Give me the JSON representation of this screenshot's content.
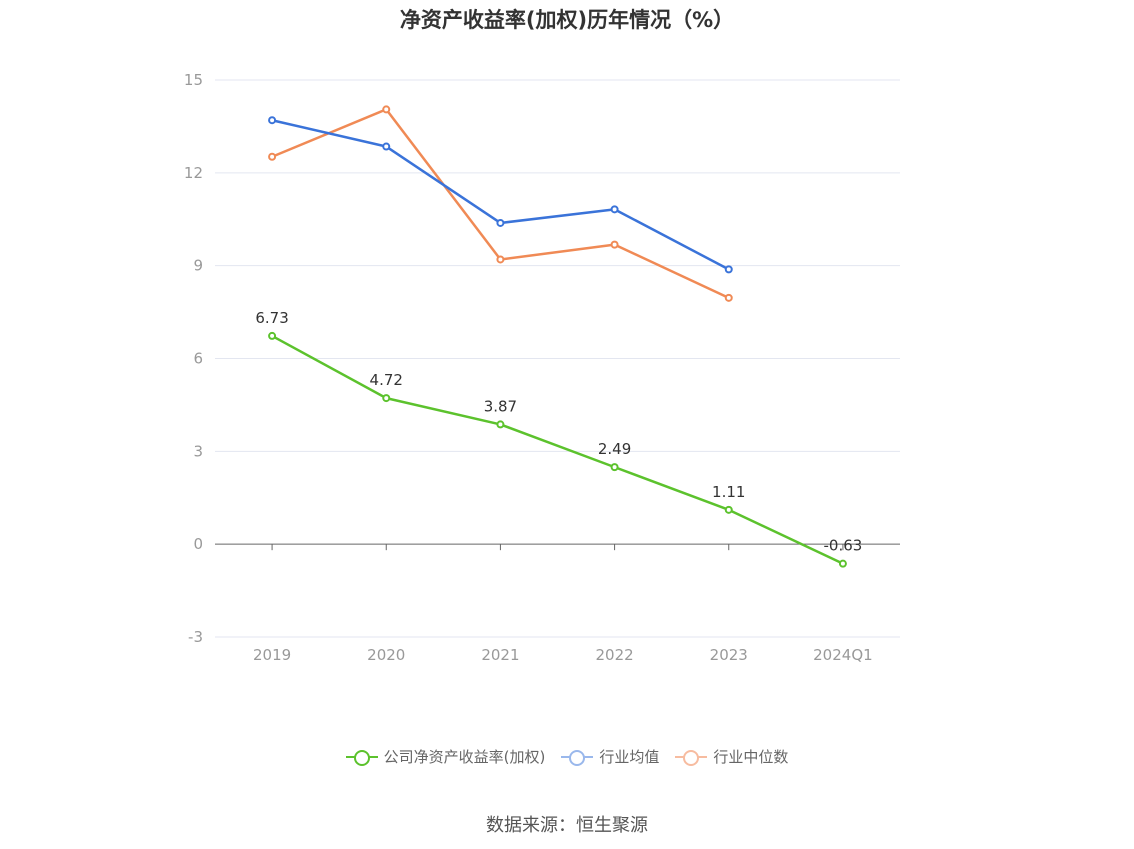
{
  "chart_data": {
    "type": "line",
    "title": "净资产收益率(加权)历年情况（%）",
    "categories": [
      "2019",
      "2020",
      "2021",
      "2022",
      "2023",
      "2024Q1"
    ],
    "ylim": [
      -3,
      15
    ],
    "yticks": [
      -3,
      0,
      3,
      6,
      9,
      12,
      15
    ],
    "grid": true,
    "legend_position": "bottom-center",
    "series": [
      {
        "name": "公司净资产收益率(加权)",
        "color": "#5cc22d",
        "values": [
          6.73,
          4.72,
          3.87,
          2.49,
          1.11,
          -0.63
        ],
        "labels": [
          "6.73",
          "4.72",
          "3.87",
          "2.49",
          "1.11",
          "-0.63"
        ]
      },
      {
        "name": "行业均值",
        "color": "#3a73d9",
        "values": [
          13.7,
          12.85,
          10.38,
          10.82,
          8.88,
          null
        ]
      },
      {
        "name": "行业中位数",
        "color": "#f08a55",
        "values": [
          12.52,
          14.05,
          9.2,
          9.68,
          7.96,
          null
        ]
      }
    ],
    "legend_swatch_colors": [
      "#5cc22d",
      "#9ab8ec",
      "#f7bca0"
    ],
    "source": "数据来源：恒生聚源"
  }
}
